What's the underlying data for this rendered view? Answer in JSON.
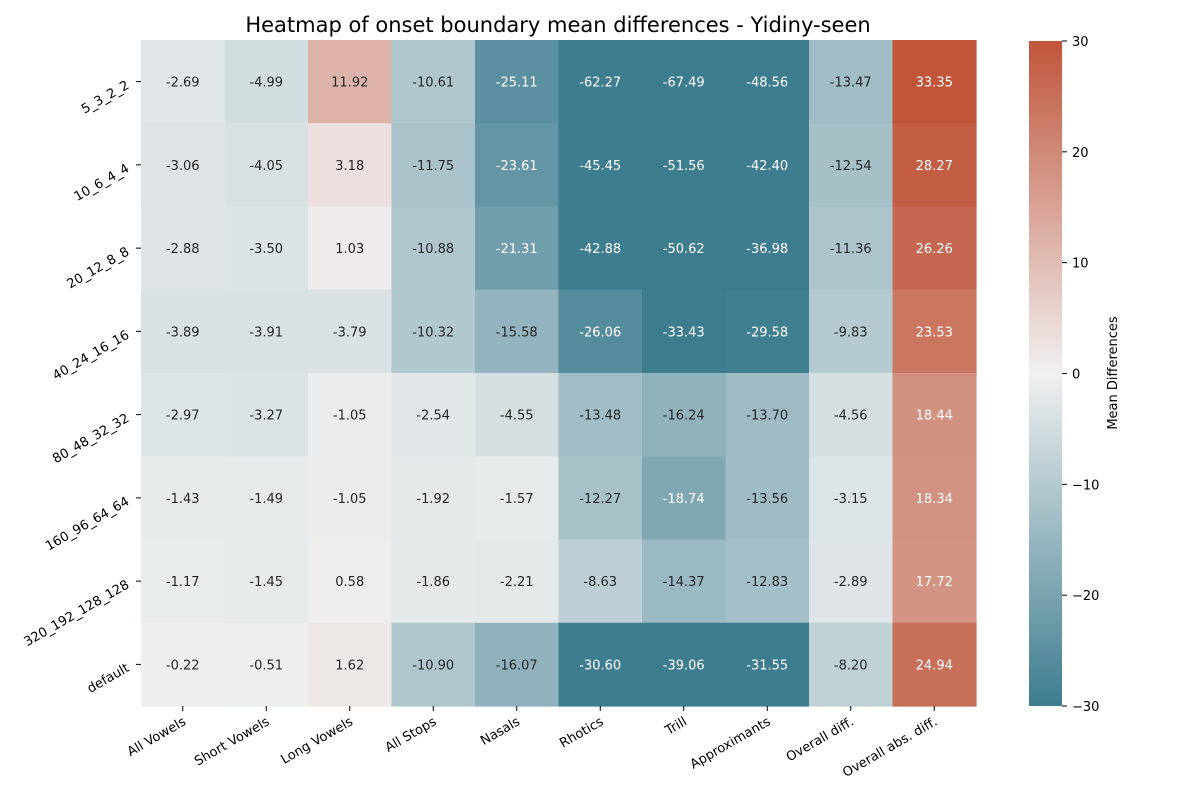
{
  "chart_data": {
    "type": "heatmap",
    "title": "Heatmap of onset boundary mean differences - Yidiny-seen",
    "columns": [
      "All Vowels",
      "Short Vowels",
      "Long Vowels",
      "All Stops",
      "Nasals",
      "Rhotics",
      "Trill",
      "Approximants",
      "Overall diff.",
      "Overall abs. diff."
    ],
    "rows": [
      "5_3_2_2",
      "10_6_4_4",
      "20_12_8_8",
      "40_24_16_16",
      "80_48_32_32",
      "160_96_64_64",
      "320_192_128_128",
      "default"
    ],
    "values": [
      [
        -2.69,
        -4.99,
        11.92,
        -10.61,
        -25.11,
        -62.27,
        -67.49,
        -48.56,
        -13.47,
        33.35
      ],
      [
        -3.06,
        -4.05,
        3.18,
        -11.75,
        -23.61,
        -45.45,
        -51.56,
        -42.4,
        -12.54,
        28.27
      ],
      [
        -2.88,
        -3.5,
        1.03,
        -10.88,
        -21.31,
        -42.88,
        -50.62,
        -36.98,
        -11.36,
        26.26
      ],
      [
        -3.89,
        -3.91,
        -3.79,
        -10.32,
        -15.58,
        -26.06,
        -33.43,
        -29.58,
        -9.83,
        23.53
      ],
      [
        -2.97,
        -3.27,
        -1.05,
        -2.54,
        -4.55,
        -13.48,
        -16.24,
        -13.7,
        -4.56,
        18.44
      ],
      [
        -1.43,
        -1.49,
        -1.05,
        -1.92,
        -1.57,
        -12.27,
        -18.74,
        -13.56,
        -3.15,
        18.34
      ],
      [
        -1.17,
        -1.45,
        0.58,
        -1.86,
        -2.21,
        -8.63,
        -14.37,
        -12.83,
        -2.89,
        17.72
      ],
      [
        -0.22,
        -0.51,
        1.62,
        -10.9,
        -16.07,
        -30.6,
        -39.06,
        -31.55,
        -8.2,
        24.94
      ]
    ],
    "colorbar": {
      "label": "Mean Differences",
      "range": [
        -30,
        30
      ],
      "ticks": [
        30,
        20,
        10,
        0,
        -10,
        -20,
        -30
      ],
      "tick_labels": [
        "30",
        "20",
        "10",
        "0",
        "−10",
        "−20",
        "−30"
      ]
    },
    "colors": {
      "low": "#3d7d8f",
      "mid": "#f0f0f0",
      "high": "#c0553a",
      "text_dark": "#262626",
      "text_light": "#ffffff"
    }
  }
}
